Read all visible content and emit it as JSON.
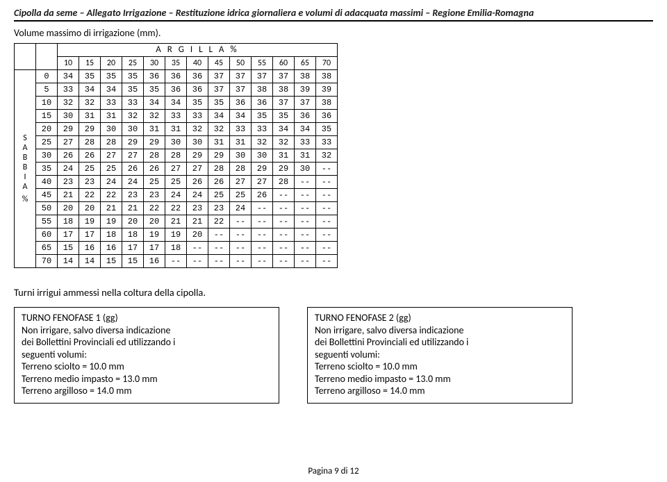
{
  "header": {
    "parts": [
      "Cipolla da seme",
      "Allegato Irrigazione",
      "Restituzione idrica giornaliera e volumi di adacquata massimi",
      "Regione Emilia-Romagna"
    ],
    "separator": "–"
  },
  "subtitle": "Volume massimo di irrigazione (mm).",
  "table": {
    "argilla_label": "A R G I L L A  %",
    "sabbia_label": "SABBIA",
    "sabbia_unit": "%",
    "col_headers": [
      "10",
      "15",
      "20",
      "25",
      "30",
      "35",
      "40",
      "45",
      "50",
      "55",
      "60",
      "65",
      "70"
    ],
    "row_headers": [
      "0",
      "5",
      "10",
      "15",
      "20",
      "25",
      "30",
      "35",
      "40",
      "45",
      "50",
      "55",
      "60",
      "65",
      "70"
    ],
    "rows": [
      [
        "34",
        "35",
        "35",
        "35",
        "36",
        "36",
        "36",
        "37",
        "37",
        "37",
        "37",
        "38",
        "38"
      ],
      [
        "33",
        "34",
        "34",
        "35",
        "35",
        "36",
        "36",
        "37",
        "37",
        "38",
        "38",
        "39",
        "39"
      ],
      [
        "32",
        "32",
        "33",
        "33",
        "34",
        "34",
        "35",
        "35",
        "36",
        "36",
        "37",
        "37",
        "38"
      ],
      [
        "30",
        "31",
        "31",
        "32",
        "32",
        "33",
        "33",
        "34",
        "34",
        "35",
        "35",
        "36",
        "36"
      ],
      [
        "29",
        "29",
        "30",
        "30",
        "31",
        "31",
        "32",
        "32",
        "33",
        "33",
        "34",
        "34",
        "35"
      ],
      [
        "27",
        "28",
        "28",
        "29",
        "29",
        "30",
        "30",
        "31",
        "31",
        "32",
        "32",
        "33",
        "33"
      ],
      [
        "26",
        "26",
        "27",
        "27",
        "28",
        "28",
        "29",
        "29",
        "30",
        "30",
        "31",
        "31",
        "32"
      ],
      [
        "24",
        "25",
        "25",
        "26",
        "26",
        "27",
        "27",
        "28",
        "28",
        "29",
        "29",
        "30",
        "--"
      ],
      [
        "23",
        "23",
        "24",
        "24",
        "25",
        "25",
        "26",
        "26",
        "27",
        "27",
        "28",
        "--",
        "--"
      ],
      [
        "21",
        "22",
        "22",
        "23",
        "23",
        "24",
        "24",
        "25",
        "25",
        "26",
        "--",
        "--",
        "--"
      ],
      [
        "20",
        "20",
        "21",
        "21",
        "22",
        "22",
        "23",
        "23",
        "24",
        "--",
        "--",
        "--",
        "--"
      ],
      [
        "18",
        "19",
        "19",
        "20",
        "20",
        "21",
        "21",
        "22",
        "--",
        "--",
        "--",
        "--",
        "--"
      ],
      [
        "17",
        "17",
        "18",
        "18",
        "19",
        "19",
        "20",
        "--",
        "--",
        "--",
        "--",
        "--",
        "--"
      ],
      [
        "15",
        "16",
        "16",
        "17",
        "17",
        "18",
        "--",
        "--",
        "--",
        "--",
        "--",
        "--",
        "--"
      ],
      [
        "14",
        "14",
        "15",
        "15",
        "16",
        "--",
        "--",
        "--",
        "--",
        "--",
        "--",
        "--",
        "--"
      ]
    ]
  },
  "turni_title": "Turni irrigui ammessi nella coltura della cipolla.",
  "box1": {
    "l1": "TURNO FENOFASE 1 (gg)",
    "l2": "Non irrigare, salvo diversa indicazione",
    "l3": "dei Bollettini Provinciali ed utilizzando i",
    "l4": "seguenti volumi:",
    "l5": "Terreno sciolto = 10.0 mm",
    "l6": "Terreno medio  impasto = 13.0 mm",
    "l7": "Terreno argilloso = 14.0 mm"
  },
  "box2": {
    "l1": "TURNO FENOFASE 2 (gg)",
    "l2": "Non irrigare, salvo diversa indicazione",
    "l3": "dei Bollettini Provinciali ed utilizzando i",
    "l4": "seguenti volumi:",
    "l5": "Terreno sciolto = 10.0 mm",
    "l6": "Terreno medio  impasto = 13.0 mm",
    "l7": "Terreno argilloso = 14.0 mm"
  },
  "footer": "Pagina 9 di 12"
}
